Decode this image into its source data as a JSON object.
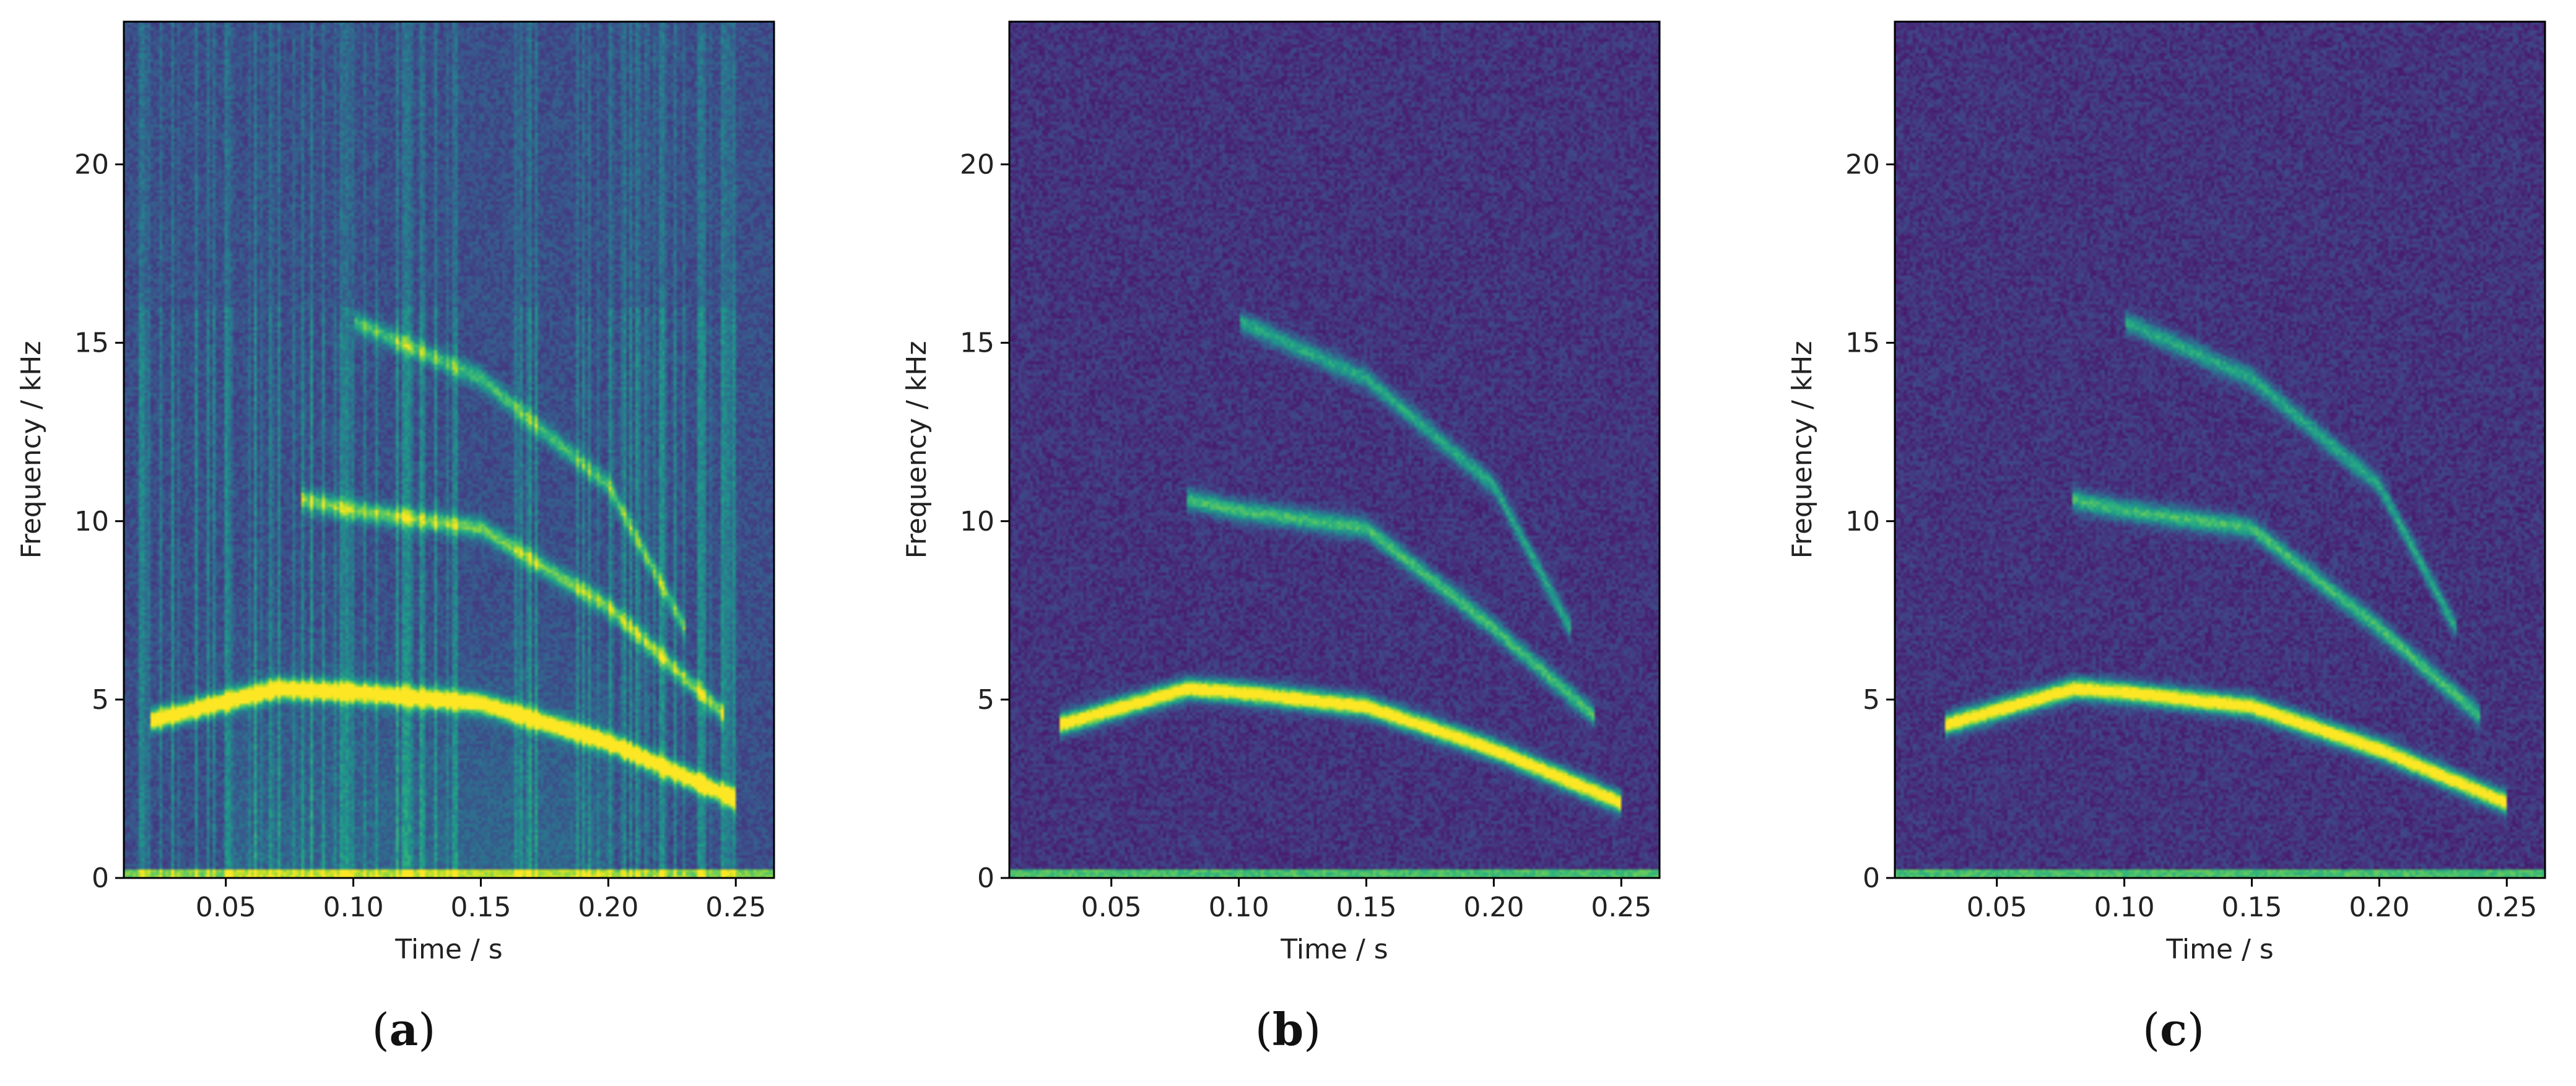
{
  "chart_data": [
    {
      "type": "heatmap",
      "panel": "a",
      "xlabel": "Time / s",
      "ylabel": "Frequency / kHz",
      "xlim": [
        0.01,
        0.265
      ],
      "ylim": [
        0,
        24
      ],
      "xticks": [
        0.05,
        0.1,
        0.15,
        0.2,
        0.25
      ],
      "xtick_labels": [
        "0.05",
        "0.10",
        "0.15",
        "0.20",
        "0.25"
      ],
      "yticks": [
        0,
        5,
        10,
        15,
        20
      ],
      "ytick_labels": [
        "0",
        "5",
        "10",
        "15",
        "20"
      ],
      "colormap": "viridis",
      "noise_level": 0.24,
      "vertical_artifacts": true,
      "harmonics": [
        {
          "t": [
            0.02,
            0.07,
            0.1,
            0.15,
            0.2,
            0.25
          ],
          "f": [
            4.4,
            5.3,
            5.2,
            4.9,
            3.8,
            2.2
          ],
          "level": 1.0
        },
        {
          "t": [
            0.08,
            0.1,
            0.15,
            0.2,
            0.245
          ],
          "f": [
            10.6,
            10.3,
            9.8,
            7.6,
            4.6
          ],
          "level": 0.55
        },
        {
          "t": [
            0.1,
            0.15,
            0.2,
            0.23
          ],
          "f": [
            15.6,
            14.0,
            11.0,
            7.0
          ],
          "level": 0.45
        }
      ],
      "caption": "a"
    },
    {
      "type": "heatmap",
      "panel": "b",
      "xlabel": "Time / s",
      "ylabel": "Frequency / kHz",
      "xlim": [
        0.01,
        0.265
      ],
      "ylim": [
        0,
        24
      ],
      "xticks": [
        0.05,
        0.1,
        0.15,
        0.2,
        0.25
      ],
      "xtick_labels": [
        "0.05",
        "0.10",
        "0.15",
        "0.20",
        "0.25"
      ],
      "yticks": [
        0,
        5,
        10,
        15,
        20
      ],
      "ytick_labels": [
        "0",
        "5",
        "10",
        "15",
        "20"
      ],
      "colormap": "viridis",
      "noise_level": 0.15,
      "vertical_artifacts": false,
      "harmonics": [
        {
          "t": [
            0.03,
            0.08,
            0.1,
            0.15,
            0.2,
            0.25
          ],
          "f": [
            4.3,
            5.3,
            5.2,
            4.8,
            3.6,
            2.1
          ],
          "level": 1.0
        },
        {
          "t": [
            0.08,
            0.1,
            0.15,
            0.2,
            0.24
          ],
          "f": [
            10.6,
            10.3,
            9.8,
            7.0,
            4.5
          ],
          "level": 0.55
        },
        {
          "t": [
            0.1,
            0.15,
            0.2,
            0.23
          ],
          "f": [
            15.6,
            14.0,
            11.0,
            7.0
          ],
          "level": 0.45
        }
      ],
      "caption": "b"
    },
    {
      "type": "heatmap",
      "panel": "c",
      "xlabel": "Time / s",
      "ylabel": "Frequency / kHz",
      "xlim": [
        0.01,
        0.265
      ],
      "ylim": [
        0,
        24
      ],
      "xticks": [
        0.05,
        0.1,
        0.15,
        0.2,
        0.25
      ],
      "xtick_labels": [
        "0.05",
        "0.10",
        "0.15",
        "0.20",
        "0.25"
      ],
      "yticks": [
        0,
        5,
        10,
        15,
        20
      ],
      "ytick_labels": [
        "0",
        "5",
        "10",
        "15",
        "20"
      ],
      "colormap": "viridis",
      "noise_level": 0.15,
      "vertical_artifacts": false,
      "harmonics": [
        {
          "t": [
            0.03,
            0.08,
            0.1,
            0.15,
            0.2,
            0.25
          ],
          "f": [
            4.3,
            5.3,
            5.2,
            4.8,
            3.6,
            2.1
          ],
          "level": 1.0
        },
        {
          "t": [
            0.08,
            0.1,
            0.15,
            0.2,
            0.24
          ],
          "f": [
            10.6,
            10.3,
            9.8,
            7.0,
            4.5
          ],
          "level": 0.55
        },
        {
          "t": [
            0.1,
            0.15,
            0.2,
            0.23
          ],
          "f": [
            15.6,
            14.0,
            11.0,
            7.0
          ],
          "level": 0.45
        }
      ],
      "caption": "c"
    }
  ]
}
